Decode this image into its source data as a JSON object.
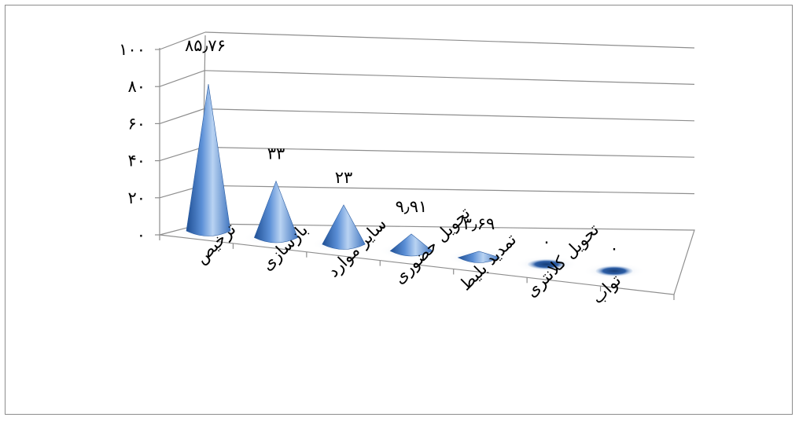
{
  "chart_data": {
    "type": "bar",
    "style": "3d-cone",
    "categories": [
      "ترخیص",
      "بازسازی",
      "سایر موارد",
      "تحویل حضوری",
      "تمدید بلیط",
      "تحویل کلانتری",
      "تواب"
    ],
    "values": [
      85.76,
      33,
      23,
      9.91,
      3.69,
      0,
      0
    ],
    "data_labels": [
      "۸۵٫۷۶",
      "۳۳",
      "۲۳",
      "۹٫۹۱",
      "۳٫۶۹",
      "۰",
      "۰"
    ],
    "y_ticks": [
      "۰",
      "۲۰",
      "۴۰",
      "۶۰",
      "۸۰",
      "۱۰۰"
    ],
    "ylim": [
      0,
      100
    ],
    "grid": true,
    "legend": "none",
    "colors": {
      "cone_light": "#b9d3f2",
      "cone_mid": "#5b8fd6",
      "cone_dark": "#1f4f94",
      "grid": "#8e8e8e",
      "border": "#8c8c8c"
    }
  }
}
